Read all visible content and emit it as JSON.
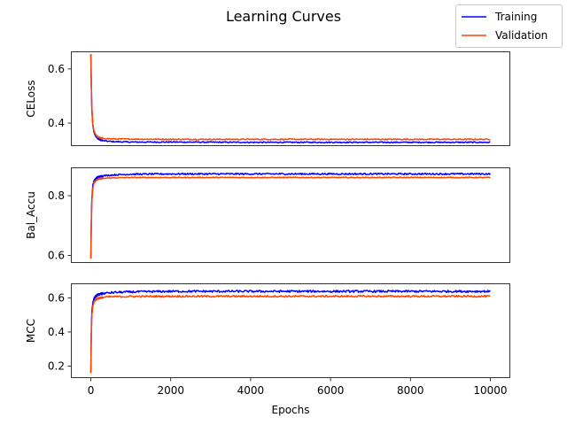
{
  "chart_data": {
    "type": "line",
    "title": "Learning Curves",
    "xlabel": "Epochs",
    "xlim": [
      -500,
      10500
    ],
    "xticks": [
      0,
      2000,
      4000,
      6000,
      8000,
      10000
    ],
    "legend": {
      "placement": "top-right",
      "entries": [
        {
          "name": "Training",
          "color": "#0000ff"
        },
        {
          "name": "Validation",
          "color": "#ff4500"
        }
      ]
    },
    "series_colors": {
      "Training": "#0000ff",
      "Validation": "#ff4500"
    },
    "subplots": [
      {
        "ylabel": "CELoss",
        "ylim": [
          0.315,
          0.665
        ],
        "yticks": [
          "0.4",
          "0.6"
        ],
        "show_x_tick_labels": false,
        "series": [
          {
            "name": "Training",
            "x": [
              0,
              10,
              25,
              50,
              80,
              120,
              170,
              250,
              350,
              500,
              700,
              1000,
              2000,
              4000,
              6000,
              8000,
              10000
            ],
            "y": [
              0.655,
              0.55,
              0.45,
              0.39,
              0.365,
              0.352,
              0.343,
              0.337,
              0.334,
              0.332,
              0.331,
              0.33,
              0.33,
              0.329,
              0.329,
              0.329,
              0.329
            ],
            "noise": 0.002
          },
          {
            "name": "Validation",
            "x": [
              0,
              10,
              25,
              50,
              80,
              120,
              170,
              250,
              350,
              500,
              700,
              1000,
              2000,
              4000,
              6000,
              8000,
              10000
            ],
            "y": [
              0.655,
              0.56,
              0.46,
              0.395,
              0.37,
              0.357,
              0.349,
              0.345,
              0.343,
              0.342,
              0.341,
              0.341,
              0.34,
              0.34,
              0.34,
              0.34,
              0.34
            ],
            "noise": 0.002
          }
        ]
      },
      {
        "ylabel": "Bal_Accu",
        "ylim": [
          0.575,
          0.895
        ],
        "yticks": [
          "0.6",
          "0.8"
        ],
        "show_x_tick_labels": false,
        "series": [
          {
            "name": "Training",
            "x": [
              0,
              10,
              25,
              50,
              80,
              120,
              170,
              250,
              400,
              600,
              1000,
              2000,
              4000,
              6000,
              8000,
              10000
            ],
            "y": [
              0.59,
              0.7,
              0.79,
              0.835,
              0.85,
              0.857,
              0.862,
              0.865,
              0.868,
              0.87,
              0.872,
              0.873,
              0.873,
              0.873,
              0.873,
              0.873
            ],
            "noise": 0.0025
          },
          {
            "name": "Validation",
            "x": [
              0,
              10,
              25,
              50,
              80,
              120,
              170,
              250,
              400,
              600,
              1000,
              2000,
              4000,
              6000,
              8000,
              10000
            ],
            "y": [
              0.59,
              0.69,
              0.78,
              0.825,
              0.843,
              0.85,
              0.855,
              0.857,
              0.859,
              0.86,
              0.861,
              0.861,
              0.861,
              0.861,
              0.861,
              0.861
            ],
            "noise": 0.0015
          }
        ]
      },
      {
        "ylabel": "MCC",
        "ylim": [
          0.13,
          0.685
        ],
        "yticks": [
          "0.2",
          "0.4",
          "0.6"
        ],
        "show_x_tick_labels": true,
        "series": [
          {
            "name": "Training",
            "x": [
              0,
              10,
              25,
              50,
              80,
              120,
              170,
              250,
              400,
              600,
              1000,
              2000,
              4000,
              6000,
              8000,
              10000
            ],
            "y": [
              0.16,
              0.38,
              0.52,
              0.57,
              0.595,
              0.608,
              0.617,
              0.623,
              0.628,
              0.632,
              0.635,
              0.638,
              0.638,
              0.638,
              0.638,
              0.638
            ],
            "noise": 0.006
          },
          {
            "name": "Validation",
            "x": [
              0,
              10,
              25,
              50,
              80,
              120,
              170,
              250,
              400,
              600,
              1000,
              2000,
              4000,
              6000,
              8000,
              10000
            ],
            "y": [
              0.16,
              0.36,
              0.5,
              0.55,
              0.575,
              0.588,
              0.596,
              0.601,
              0.605,
              0.607,
              0.608,
              0.609,
              0.609,
              0.609,
              0.609,
              0.609
            ],
            "noise": 0.005
          }
        ]
      }
    ]
  }
}
